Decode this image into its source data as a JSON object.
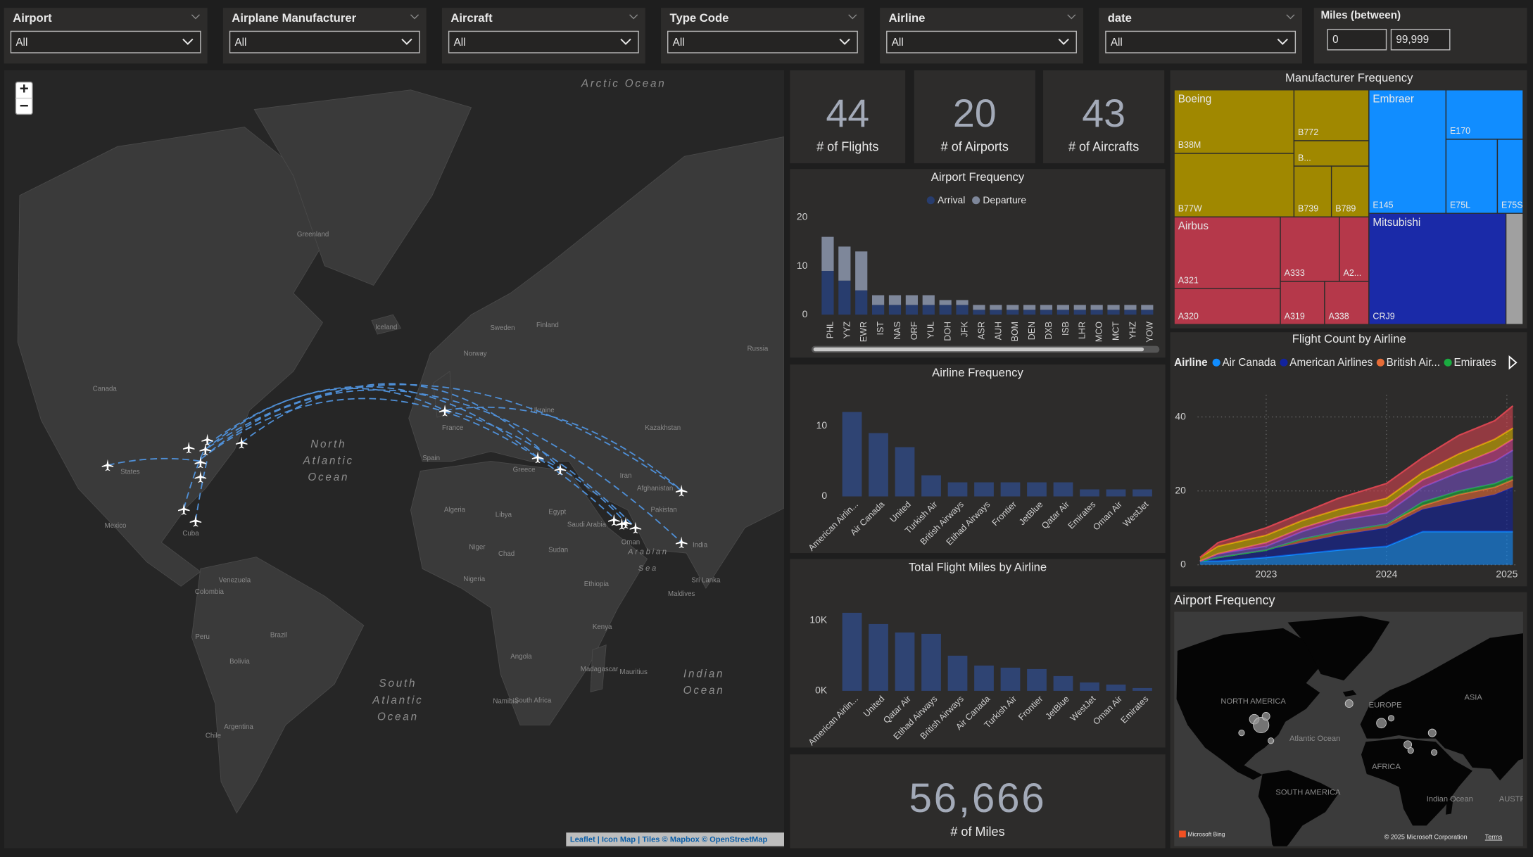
{
  "filters": [
    {
      "label": "Airport",
      "value": "All"
    },
    {
      "label": "Airplane Manufacturer",
      "value": "All"
    },
    {
      "label": "Aircraft",
      "value": "All"
    },
    {
      "label": "Type Code",
      "value": "All"
    },
    {
      "label": "Airline",
      "value": "All"
    },
    {
      "label": "date",
      "value": "All"
    }
  ],
  "miles_filter": {
    "label": "Miles (between)",
    "min": "0",
    "max": "99,999"
  },
  "map": {
    "zoom_in": "+",
    "zoom_out": "−",
    "labels": [
      "Greenland",
      "Iceland",
      "Canada",
      "States",
      "Mexico",
      "Cuba",
      "Venezuela",
      "Colombia",
      "Peru",
      "Brazil",
      "Bolivia",
      "Argentina",
      "Chile",
      "Russia",
      "Kazakhstan",
      "Sweden",
      "Norway",
      "Finland",
      "Ukraine",
      "France",
      "Spain",
      "Algeria",
      "Libya",
      "Egypt",
      "Niger",
      "Chad",
      "Sudan",
      "Nigeria",
      "Ethiopia",
      "Kenya",
      "Angola",
      "Namibia",
      "South Africa",
      "Madagascar",
      "Saudi Arabia",
      "Iran",
      "Pakistan",
      "India",
      "Afghanistan",
      "Oman",
      "Sri Lanka",
      "Maldives",
      "Greece",
      "Mauritius"
    ],
    "ocean_labels": [
      [
        "Arctic Ocean"
      ],
      [
        "North",
        "Atlantic",
        "Ocean"
      ],
      [
        "South",
        "Atlantic",
        "Ocean"
      ],
      [
        "Indian",
        "Ocean"
      ],
      [
        "Arabian",
        "Sea"
      ]
    ],
    "attribution": "Leaflet | Icon Map | Tiles © Mapbox © OpenStreetMap"
  },
  "kpis": [
    {
      "value": 44,
      "label": "# of Flights"
    },
    {
      "value": 20,
      "label": "# of Airports"
    },
    {
      "value": 43,
      "label": "# of Aircrafts"
    }
  ],
  "miles_kpi": {
    "value": "56,666",
    "label": "# of Miles"
  },
  "chart_data": [
    {
      "type": "bar",
      "title": "Airport Frequency",
      "stacked": true,
      "categories": [
        "PHL",
        "YYZ",
        "EWR",
        "IST",
        "NAS",
        "ORF",
        "YUL",
        "DOH",
        "JFK",
        "ASR",
        "AUH",
        "BOM",
        "DEN",
        "DXB",
        "ISB",
        "LHR",
        "MCO",
        "MCT",
        "YHZ",
        "YOW"
      ],
      "series": [
        {
          "name": "Arrival",
          "color": "#283d6e",
          "values": [
            9,
            7,
            5,
            2,
            2,
            2,
            2,
            2,
            2,
            1,
            1,
            1,
            1,
            1,
            1,
            1,
            1,
            1,
            1,
            1
          ]
        },
        {
          "name": "Departure",
          "color": "#7e879a",
          "values": [
            7,
            7,
            8,
            2,
            2,
            2,
            2,
            1,
            1,
            1,
            1,
            1,
            1,
            1,
            1,
            1,
            1,
            1,
            1,
            1
          ]
        }
      ],
      "ylim": [
        0,
        21.5
      ],
      "yticks": [
        0,
        10,
        20
      ],
      "label_rotation": -90
    },
    {
      "type": "bar",
      "title": "Airline Frequency",
      "categories": [
        "American Airlin...",
        "Air Canada",
        "United",
        "Turkish Air",
        "British Airways",
        "Etihad Airways",
        "Frontier",
        "JetBlue",
        "Qatar Air",
        "Emirates",
        "Oman Air",
        "WestJet"
      ],
      "values": [
        12,
        9,
        7,
        3,
        2,
        2,
        2,
        2,
        2,
        1,
        1,
        1
      ],
      "color": "#2f4473",
      "ylim": [
        0,
        13.5
      ],
      "yticks": [
        0,
        10
      ],
      "label_rotation": -45
    },
    {
      "type": "bar",
      "title": "Total Flight Miles by Airline",
      "categories": [
        "American Airlin...",
        "United",
        "Qatar Air",
        "Etihad Airways",
        "British Airways",
        "Air Canada",
        "Turkish Air",
        "Frontier",
        "JetBlue",
        "WestJet",
        "Oman Air",
        "Emirates"
      ],
      "values": [
        11100,
        9500,
        8300,
        8100,
        5000,
        3600,
        3300,
        3100,
        2100,
        1200,
        900,
        400
      ],
      "color": "#2f4473",
      "ylim": [
        0,
        12500
      ],
      "yticks": [
        {
          "value": 0,
          "label": "0K"
        },
        {
          "value": 10000,
          "label": "10K"
        }
      ],
      "label_rotation": -45
    },
    {
      "type": "treemap",
      "title": "Manufacturer Frequency",
      "groups": [
        {
          "name": "Boeing",
          "color": "#a08800",
          "children": [
            {
              "name": "B38M",
              "value": 4
            },
            {
              "name": "B77W",
              "value": 4
            },
            {
              "name": "B772",
              "value": 2
            },
            {
              "name": "B...",
              "value": 1
            },
            {
              "name": "B739",
              "value": 1
            },
            {
              "name": "B789",
              "value": 1
            }
          ]
        },
        {
          "name": "Airbus",
          "color": "#b5384a",
          "children": [
            {
              "name": "A321",
              "value": 4
            },
            {
              "name": "A320",
              "value": 2
            },
            {
              "name": "A333",
              "value": 2
            },
            {
              "name": "A2...",
              "value": 1
            },
            {
              "name": "A319",
              "value": 1
            },
            {
              "name": "A338",
              "value": 1
            }
          ]
        },
        {
          "name": "Embraer",
          "color": "#118dff",
          "children": [
            {
              "name": "E145",
              "value": 5
            },
            {
              "name": "E170",
              "value": 2
            },
            {
              "name": "E75L",
              "value": 2
            },
            {
              "name": "E75S",
              "value": 1
            }
          ]
        },
        {
          "name": "Mitsubishi",
          "color": "#1a2aa8",
          "children": [
            {
              "name": "CRJ9",
              "value": 8
            },
            {
              "name": null,
              "value": 1,
              "color": "#a0a0a0"
            }
          ]
        }
      ]
    },
    {
      "type": "area",
      "title": "Flight Count by Airline",
      "legend_title": "Airline",
      "stacked": true,
      "grid": true,
      "x": [
        2022.45,
        2022.6,
        2023.0,
        2023.3,
        2023.6,
        2024.0,
        2024.3,
        2024.6,
        2024.9,
        2025.05
      ],
      "xlim": [
        2022.43,
        2025.07
      ],
      "xticks": [
        2023,
        2024,
        2025
      ],
      "ylim": [
        0,
        46
      ],
      "yticks": [
        0,
        20,
        40
      ],
      "series": [
        {
          "name": "Air Canada",
          "color": "#118dff",
          "values": [
            1,
            1,
            2,
            3,
            4,
            5,
            9,
            9,
            9,
            9
          ]
        },
        {
          "name": "American Airlines",
          "color": "#12239e",
          "values": [
            0,
            1,
            2,
            3,
            4,
            5,
            6,
            8,
            10,
            12
          ]
        },
        {
          "name": "British Air...",
          "color": "#e66c37",
          "values": [
            0,
            0,
            0,
            1,
            1,
            1,
            1,
            2,
            2,
            2
          ]
        },
        {
          "name": "Emirates",
          "color": "#1aab40",
          "values": [
            0,
            0,
            0,
            0,
            0,
            0,
            1,
            1,
            1,
            1
          ]
        },
        {
          "name": null,
          "color": "#744ec2",
          "values": [
            0,
            1,
            1,
            2,
            3,
            3,
            4,
            5,
            6,
            7
          ]
        },
        {
          "name": null,
          "color": "#d64590",
          "values": [
            0,
            0,
            1,
            1,
            1,
            2,
            2,
            2,
            3,
            3
          ]
        },
        {
          "name": null,
          "color": "#d9b300",
          "values": [
            1,
            2,
            2,
            2,
            2,
            2,
            2,
            3,
            3,
            3
          ]
        },
        {
          "name": null,
          "color": "#d64550",
          "values": [
            0,
            1,
            2,
            2,
            3,
            4,
            4,
            5,
            5,
            6
          ]
        }
      ]
    }
  ],
  "bing_map": {
    "title": "Airport Frequency",
    "labels": [
      "NORTH AMERICA",
      "EUROPE",
      "ASIA",
      "Atlantic Ocean",
      "AFRICA",
      "SOUTH AMERICA",
      "Indian Ocean",
      "AUSTR"
    ],
    "logo": "Microsoft Bing",
    "copyright": "© 2025 Microsoft Corporation",
    "terms": "Terms"
  }
}
